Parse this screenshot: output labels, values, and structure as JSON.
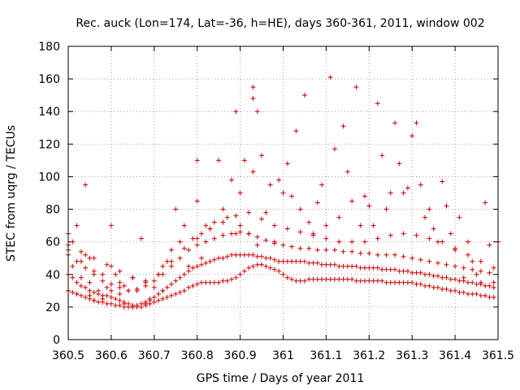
{
  "chart_data": {
    "type": "scatter",
    "title": "Rec. auck (Lon=174, Lat=-36, h=HE), days 360-361, 2011, window 002",
    "xlabel": "GPS time / Days of year 2011",
    "ylabel": "STEC from uqrg / TECUs",
    "xlim": [
      360.5,
      361.5
    ],
    "ylim": [
      0,
      180
    ],
    "xticks": [
      360.5,
      360.6,
      360.7,
      360.8,
      360.9,
      361,
      361.1,
      361.2,
      361.3,
      361.4,
      361.5
    ],
    "xtick_labels": [
      "360.5",
      "360.6",
      "360.7",
      "360.8",
      "360.9",
      "361",
      "361.1",
      "361.2",
      "361.3",
      "361.4",
      "361.5"
    ],
    "yticks": [
      0,
      20,
      40,
      60,
      80,
      100,
      120,
      140,
      160,
      180
    ],
    "ytick_labels": [
      "0",
      "20",
      "40",
      "60",
      "80",
      "100",
      "120",
      "140",
      "160",
      "180"
    ],
    "grid": true,
    "marker": "plus",
    "color": "#cc0000",
    "series": [
      {
        "x": [
          360.5,
          360.5,
          360.5,
          360.51,
          360.51,
          360.52,
          360.52,
          360.53,
          360.53,
          360.54,
          360.54,
          360.55,
          360.55,
          360.55,
          360.56,
          360.56,
          360.57,
          360.58,
          360.58,
          360.59,
          360.6,
          360.6,
          360.6,
          360.61,
          360.62,
          360.62,
          360.63,
          360.63,
          360.64,
          360.65,
          360.65,
          360.66,
          360.67,
          360.68,
          360.68,
          360.69,
          360.7,
          360.71,
          360.72,
          360.72,
          360.73,
          360.74,
          360.75,
          360.76,
          360.77,
          360.78,
          360.79,
          360.8,
          360.8,
          360.81,
          360.81,
          360.82,
          360.83,
          360.84,
          360.85,
          360.86,
          360.87,
          360.88,
          360.89,
          360.89,
          360.9,
          360.9,
          360.91,
          360.92,
          360.93,
          360.93,
          360.93,
          360.94,
          360.94,
          360.95,
          360.96,
          360.97,
          360.98,
          360.99,
          361,
          361.01,
          361.02,
          361.03,
          361.04,
          361.05,
          361.06,
          361.07,
          361.08,
          361.09,
          361.1,
          361.11,
          361.12,
          361.13,
          361.14,
          361.15,
          361.16,
          361.17,
          361.18,
          361.19,
          361.2,
          361.21,
          361.22,
          361.23,
          361.24,
          361.25,
          361.26,
          361.27,
          361.28,
          361.29,
          361.3,
          361.31,
          361.32,
          361.33,
          361.34,
          361.35,
          361.36,
          361.37,
          361.38,
          361.39,
          361.4,
          361.41,
          361.42,
          361.43,
          361.44,
          361.45,
          361.46,
          361.47,
          361.48,
          361.49,
          361.5
        ],
        "y": [
          65,
          55,
          30,
          60,
          45,
          70,
          28,
          48,
          38,
          95,
          52,
          50,
          35,
          27,
          42,
          24,
          30,
          40,
          25,
          32,
          70,
          45,
          30,
          40,
          28,
          35,
          22,
          33,
          30,
          20,
          38,
          30,
          62,
          22,
          35,
          25,
          32,
          40,
          45,
          30,
          48,
          55,
          80,
          60,
          70,
          45,
          62,
          85,
          110,
          50,
          65,
          70,
          68,
          72,
          110,
          80,
          75,
          98,
          140,
          65,
          90,
          70,
          110,
          65,
          155,
          148,
          103,
          58,
          140,
          113,
          78,
          95,
          60,
          98,
          90,
          108,
          88,
          128,
          80,
          150,
          72,
          65,
          84,
          95,
          70,
          161,
          117,
          75,
          131,
          103,
          85,
          155,
          70,
          88,
          82,
          70,
          145,
          113,
          80,
          90,
          133,
          108,
          90,
          93,
          125,
          133,
          95,
          75,
          80,
          68,
          60,
          97,
          82,
          65,
          55,
          75,
          38,
          60,
          48,
          40,
          35,
          84,
          58,
          35,
          60
        ],
        "name": ""
      },
      {
        "x": [
          360.5,
          360.51,
          360.52,
          360.53,
          360.54,
          360.55,
          360.56,
          360.57,
          360.58,
          360.59,
          360.6,
          360.61,
          360.62,
          360.63,
          360.64,
          360.65,
          360.66,
          360.67,
          360.68,
          360.69,
          360.7,
          360.71,
          360.72,
          360.73,
          360.74,
          360.75,
          360.76,
          360.77,
          360.78,
          360.79,
          360.8,
          360.81,
          360.82,
          360.83,
          360.84,
          360.85,
          360.86,
          360.87,
          360.88,
          360.89,
          360.9,
          360.91,
          360.92,
          360.93,
          360.94,
          360.95,
          360.96,
          360.97,
          360.98,
          360.99,
          361,
          361.01,
          361.02,
          361.03,
          361.04,
          361.05,
          361.06,
          361.07,
          361.08,
          361.09,
          361.1,
          361.11,
          361.12,
          361.13,
          361.14,
          361.15,
          361.16,
          361.17,
          361.18,
          361.19,
          361.2,
          361.21,
          361.22,
          361.23,
          361.24,
          361.25,
          361.26,
          361.27,
          361.28,
          361.29,
          361.3,
          361.31,
          361.32,
          361.33,
          361.34,
          361.35,
          361.36,
          361.37,
          361.38,
          361.39,
          361.4,
          361.41,
          361.42,
          361.43,
          361.44,
          361.45,
          361.46,
          361.47,
          361.48,
          361.49
        ],
        "y": [
          40,
          38,
          35,
          33,
          32,
          30,
          29,
          28,
          27,
          27,
          26,
          25,
          24,
          23,
          22,
          21,
          21,
          22,
          23,
          24,
          26,
          28,
          30,
          32,
          34,
          36,
          38,
          40,
          42,
          44,
          45,
          46,
          47,
          48,
          49,
          50,
          50,
          51,
          52,
          52,
          52,
          52,
          52,
          52,
          51,
          51,
          50,
          50,
          49,
          48,
          48,
          48,
          48,
          48,
          48,
          48,
          47,
          47,
          47,
          46,
          46,
          46,
          46,
          45,
          45,
          45,
          45,
          45,
          44,
          44,
          44,
          44,
          44,
          43,
          43,
          43,
          43,
          42,
          42,
          42,
          41,
          41,
          41,
          40,
          40,
          39,
          39,
          38,
          38,
          37,
          37,
          36,
          36,
          35,
          35,
          34,
          34,
          33,
          33,
          32
        ],
        "name": ""
      },
      {
        "x": [
          360.5,
          360.51,
          360.52,
          360.53,
          360.54,
          360.55,
          360.56,
          360.57,
          360.58,
          360.59,
          360.6,
          360.61,
          360.62,
          360.63,
          360.64,
          360.65,
          360.66,
          360.67,
          360.68,
          360.69,
          360.7,
          360.71,
          360.72,
          360.73,
          360.74,
          360.75,
          360.76,
          360.77,
          360.78,
          360.79,
          360.8,
          360.81,
          360.82,
          360.83,
          360.84,
          360.85,
          360.86,
          360.87,
          360.88,
          360.89,
          360.9,
          360.91,
          360.92,
          360.93,
          360.94,
          360.95,
          360.96,
          360.97,
          360.98,
          360.99,
          361,
          361.01,
          361.02,
          361.03,
          361.04,
          361.05,
          361.06,
          361.07,
          361.08,
          361.09,
          361.1,
          361.11,
          361.12,
          361.13,
          361.14,
          361.15,
          361.16,
          361.17,
          361.18,
          361.19,
          361.2,
          361.21,
          361.22,
          361.23,
          361.24,
          361.25,
          361.26,
          361.27,
          361.28,
          361.29,
          361.3,
          361.31,
          361.32,
          361.33,
          361.34,
          361.35,
          361.36,
          361.37,
          361.38,
          361.39,
          361.4,
          361.41,
          361.42,
          361.43,
          361.44,
          361.45,
          361.46,
          361.47,
          361.48,
          361.49
        ],
        "y": [
          30,
          29,
          28,
          27,
          26,
          25,
          24,
          23,
          23,
          22,
          22,
          21,
          21,
          20,
          20,
          20,
          20,
          20,
          21,
          22,
          23,
          24,
          25,
          26,
          27,
          28,
          29,
          30,
          32,
          33,
          34,
          35,
          35,
          35,
          35,
          35,
          36,
          36,
          37,
          38,
          40,
          42,
          44,
          45,
          46,
          46,
          45,
          44,
          43,
          42,
          40,
          38,
          37,
          36,
          36,
          36,
          37,
          37,
          37,
          37,
          37,
          37,
          37,
          37,
          37,
          37,
          37,
          36,
          36,
          36,
          36,
          36,
          36,
          36,
          35,
          35,
          35,
          35,
          35,
          35,
          35,
          34,
          34,
          33,
          33,
          32,
          32,
          31,
          31,
          30,
          30,
          29,
          29,
          28,
          28,
          28,
          27,
          27,
          26,
          26
        ],
        "name": ""
      },
      {
        "x": [
          360.5,
          360.52,
          360.54,
          360.56,
          360.58,
          360.6,
          360.62,
          360.64,
          360.66,
          360.68,
          360.7,
          360.72,
          360.74,
          360.76,
          360.78,
          360.8,
          360.82,
          360.84,
          360.86,
          360.88,
          360.9,
          360.92,
          360.94,
          360.96,
          360.98,
          361,
          361.02,
          361.04,
          361.06,
          361.08,
          361.1,
          361.12,
          361.14,
          361.16,
          361.18,
          361.2,
          361.22,
          361.24,
          361.26,
          361.28,
          361.3,
          361.32,
          361.34,
          361.36,
          361.38,
          361.4,
          361.42,
          361.44,
          361.46,
          361.48
        ],
        "y": [
          52,
          48,
          44,
          40,
          36,
          34,
          32,
          30,
          31,
          33,
          36,
          40,
          45,
          50,
          55,
          58,
          60,
          62,
          64,
          65,
          66,
          65,
          63,
          61,
          59,
          58,
          57,
          56,
          56,
          55,
          55,
          55,
          54,
          54,
          53,
          53,
          52,
          52,
          52,
          51,
          50,
          49,
          48,
          47,
          46,
          45,
          44,
          43,
          42,
          41
        ],
        "name": ""
      },
      {
        "x": [
          360.5,
          360.53,
          360.56,
          360.59,
          360.62,
          360.65,
          360.68,
          360.71,
          360.74,
          360.77,
          360.8,
          360.83,
          360.86,
          360.89,
          360.92,
          360.95,
          360.98,
          361.01,
          361.04,
          361.07,
          361.1,
          361.13,
          361.16,
          361.19,
          361.22,
          361.25,
          361.28,
          361.31,
          361.34,
          361.37,
          361.4,
          361.43,
          361.46,
          361.49
        ],
        "y": [
          58,
          54,
          50,
          46,
          42,
          38,
          36,
          40,
          48,
          56,
          62,
          68,
          72,
          76,
          78,
          74,
          70,
          68,
          66,
          64,
          62,
          60,
          60,
          60,
          62,
          64,
          65,
          64,
          62,
          60,
          56,
          52,
          48,
          44
        ],
        "name": ""
      }
    ]
  }
}
